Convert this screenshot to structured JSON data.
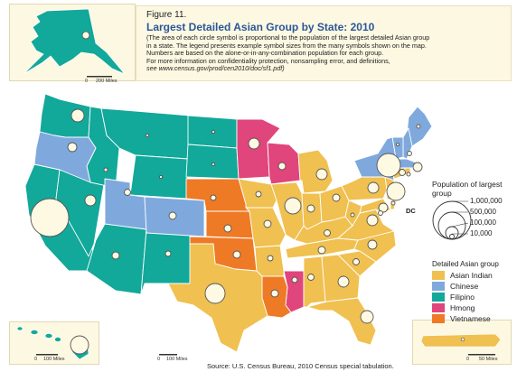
{
  "figure": {
    "number": "Figure 11.",
    "title": "Largest Detailed Asian Group by State: 2010",
    "note_lines": [
      "(The area of each circle symbol is proportional to the population of the largest detailed Asian group",
      "in a state. The legend presents example symbol sizes from the many symbols shown on the map.",
      "Numbers are based on the alone-or-in-any-combination population for each group.",
      "For more information on confidentiality protection, nonsampling error, and definitions,"
    ],
    "note_url": "see www.census.gov/prod/cen2010/doc/sf1.pdf)"
  },
  "scales": {
    "alaska": {
      "zero": "0",
      "miles": "200 Miles"
    },
    "hawaii": {
      "zero": "0",
      "miles": "100 Miles"
    },
    "mainland": {
      "zero": "0",
      "miles": "100 Miles"
    },
    "puerto_rico": {
      "zero": "0",
      "miles": "50 Miles"
    }
  },
  "size_legend": {
    "title": "Population of largest group",
    "values": [
      {
        "label": "1,000,000",
        "population": 1000000
      },
      {
        "label": "500,000",
        "population": 500000
      },
      {
        "label": "100,000",
        "population": 100000
      },
      {
        "label": "10,000",
        "population": 10000
      }
    ]
  },
  "category_legend": {
    "title": "Detailed Asian group",
    "items": [
      {
        "label": "Asian Indian",
        "color": "#f0c050"
      },
      {
        "label": "Chinese",
        "color": "#7fa9dd"
      },
      {
        "label": "Filipino",
        "color": "#12a89a"
      },
      {
        "label": "Hmong",
        "color": "#e0457b"
      },
      {
        "label": "Vietnamese",
        "color": "#ef7a25"
      }
    ]
  },
  "colors": {
    "background": "#ffffff",
    "inset_background": "#fdf8e2",
    "circle_fill": "#fdf9e3",
    "circle_stroke": "#555555",
    "state_border": "#ffffff",
    "title_blue": "#2b5797"
  },
  "dc_label": "DC",
  "source": "Source: U.S. Census Bureau, 2010 Census special tabulation."
}
